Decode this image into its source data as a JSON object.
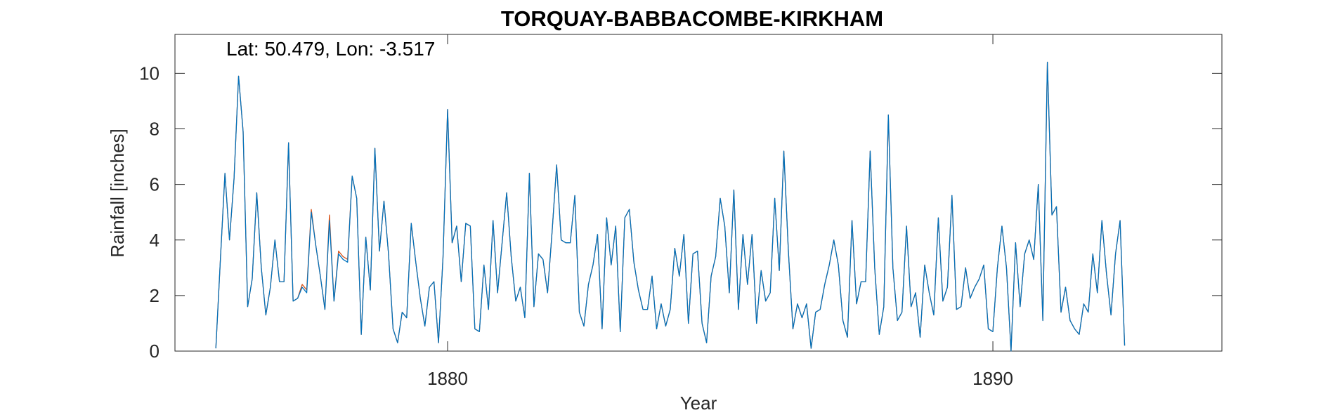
{
  "chart_data": {
    "type": "line",
    "title": "TORQUAY-BABBACOMBE-KIRKHAM",
    "annotation": "Lat: 50.479, Lon: -3.517",
    "xlabel": "Year",
    "ylabel": "Rainfall [inches]",
    "xlim": [
      1875.0,
      1894.2
    ],
    "ylim": [
      0,
      11.4
    ],
    "xticks": [
      1880,
      1890
    ],
    "yticks": [
      0,
      2,
      4,
      6,
      8,
      10
    ],
    "grid": false,
    "x_start": 1875.75,
    "x_step_years": 0.08333,
    "series": [
      {
        "color": "#d95319",
        "values": [
          0.1,
          3.3,
          6.4,
          4.0,
          6.2,
          9.9,
          7.9,
          1.6,
          2.6,
          5.7,
          3.0,
          1.3,
          2.3,
          4.0,
          2.5,
          2.5,
          7.5,
          1.8,
          1.9,
          2.4,
          2.2,
          5.1,
          3.8,
          2.7,
          1.5,
          4.9,
          1.8,
          3.6,
          3.4,
          3.3,
          6.3,
          5.5,
          0.6,
          4.1,
          2.2,
          7.3,
          3.6,
          5.4,
          3.5,
          0.8,
          0.3,
          1.4,
          1.2,
          4.6,
          3.2,
          1.9,
          0.9,
          2.3,
          2.5,
          0.3,
          3.4,
          8.7,
          3.9,
          4.5,
          2.5,
          4.6,
          4.5,
          0.8,
          0.7,
          3.1,
          1.5,
          4.7,
          2.1,
          3.9,
          5.7,
          3.4,
          1.8,
          2.3,
          1.2,
          6.4,
          1.6,
          3.5,
          3.3,
          2.1,
          4.3,
          6.7,
          4.0,
          3.9,
          3.9,
          5.6,
          1.4,
          0.9,
          2.4,
          3.1,
          4.2,
          0.8,
          4.8,
          3.1,
          4.5,
          0.7,
          4.8,
          5.1,
          3.2,
          2.2,
          1.5,
          1.5,
          2.7,
          0.8,
          1.7,
          0.9,
          1.5,
          3.7,
          2.7,
          4.2,
          1.0,
          3.5,
          3.6,
          1.0,
          0.3,
          2.7,
          3.4,
          5.5,
          4.5,
          2.1,
          5.8,
          1.5,
          4.2,
          2.4,
          4.2,
          1.0,
          2.9,
          1.8,
          2.1,
          5.5,
          2.9,
          7.2,
          3.6,
          0.8,
          1.7,
          1.2,
          1.7,
          0.1,
          1.4,
          1.5,
          2.4,
          3.1,
          4.0,
          3.1,
          1.1,
          0.5,
          4.7,
          1.7,
          2.5,
          2.5,
          7.2,
          3.0,
          0.6,
          1.6,
          8.5,
          3.0,
          1.1,
          1.4,
          4.5,
          1.6,
          2.1,
          0.5,
          3.1,
          2.1,
          1.3,
          4.8,
          1.8,
          2.3,
          5.6,
          1.5,
          1.6,
          3.0,
          1.9,
          2.3,
          2.6,
          3.1,
          0.8,
          0.7,
          3.0,
          4.5,
          3.0,
          0.0,
          3.9,
          1.6,
          3.5,
          4.0,
          3.3,
          6.0,
          1.1,
          10.4,
          4.9,
          5.2,
          1.4,
          2.3,
          1.1,
          0.8,
          0.6,
          1.7,
          1.4,
          3.5,
          2.1,
          4.7,
          2.8,
          1.3,
          3.5,
          4.7,
          0.2
        ]
      },
      {
        "color": "#0072bd",
        "values": [
          0.1,
          3.3,
          6.4,
          4.0,
          6.2,
          9.9,
          7.9,
          1.6,
          2.6,
          5.7,
          3.0,
          1.3,
          2.3,
          4.0,
          2.5,
          2.5,
          7.5,
          1.8,
          1.9,
          2.3,
          2.1,
          5.0,
          3.8,
          2.7,
          1.5,
          4.7,
          1.8,
          3.5,
          3.3,
          3.2,
          6.3,
          5.5,
          0.6,
          4.1,
          2.2,
          7.3,
          3.6,
          5.4,
          3.5,
          0.8,
          0.3,
          1.4,
          1.2,
          4.6,
          3.2,
          1.9,
          0.9,
          2.3,
          2.5,
          0.3,
          3.4,
          8.7,
          3.9,
          4.5,
          2.5,
          4.6,
          4.5,
          0.8,
          0.7,
          3.1,
          1.5,
          4.7,
          2.1,
          3.9,
          5.7,
          3.4,
          1.8,
          2.3,
          1.2,
          6.4,
          1.6,
          3.5,
          3.3,
          2.1,
          4.3,
          6.7,
          4.0,
          3.9,
          3.9,
          5.6,
          1.4,
          0.9,
          2.4,
          3.1,
          4.2,
          0.8,
          4.8,
          3.1,
          4.5,
          0.7,
          4.8,
          5.1,
          3.2,
          2.2,
          1.5,
          1.5,
          2.7,
          0.8,
          1.7,
          0.9,
          1.5,
          3.7,
          2.7,
          4.2,
          1.0,
          3.5,
          3.6,
          1.0,
          0.3,
          2.7,
          3.4,
          5.5,
          4.5,
          2.1,
          5.8,
          1.5,
          4.2,
          2.4,
          4.2,
          1.0,
          2.9,
          1.8,
          2.1,
          5.5,
          2.9,
          7.2,
          3.6,
          0.8,
          1.7,
          1.2,
          1.7,
          0.1,
          1.4,
          1.5,
          2.4,
          3.1,
          4.0,
          3.1,
          1.1,
          0.5,
          4.7,
          1.7,
          2.5,
          2.5,
          7.2,
          3.0,
          0.6,
          1.6,
          8.5,
          3.0,
          1.1,
          1.4,
          4.5,
          1.6,
          2.1,
          0.5,
          3.1,
          2.1,
          1.3,
          4.8,
          1.8,
          2.3,
          5.6,
          1.5,
          1.6,
          3.0,
          1.9,
          2.3,
          2.6,
          3.1,
          0.8,
          0.7,
          3.0,
          4.5,
          3.0,
          0.0,
          3.9,
          1.6,
          3.5,
          4.0,
          3.3,
          6.0,
          1.1,
          10.4,
          4.9,
          5.2,
          1.4,
          2.3,
          1.1,
          0.8,
          0.6,
          1.7,
          1.4,
          3.5,
          2.1,
          4.7,
          2.8,
          1.3,
          3.5,
          4.7,
          0.2
        ]
      }
    ]
  }
}
